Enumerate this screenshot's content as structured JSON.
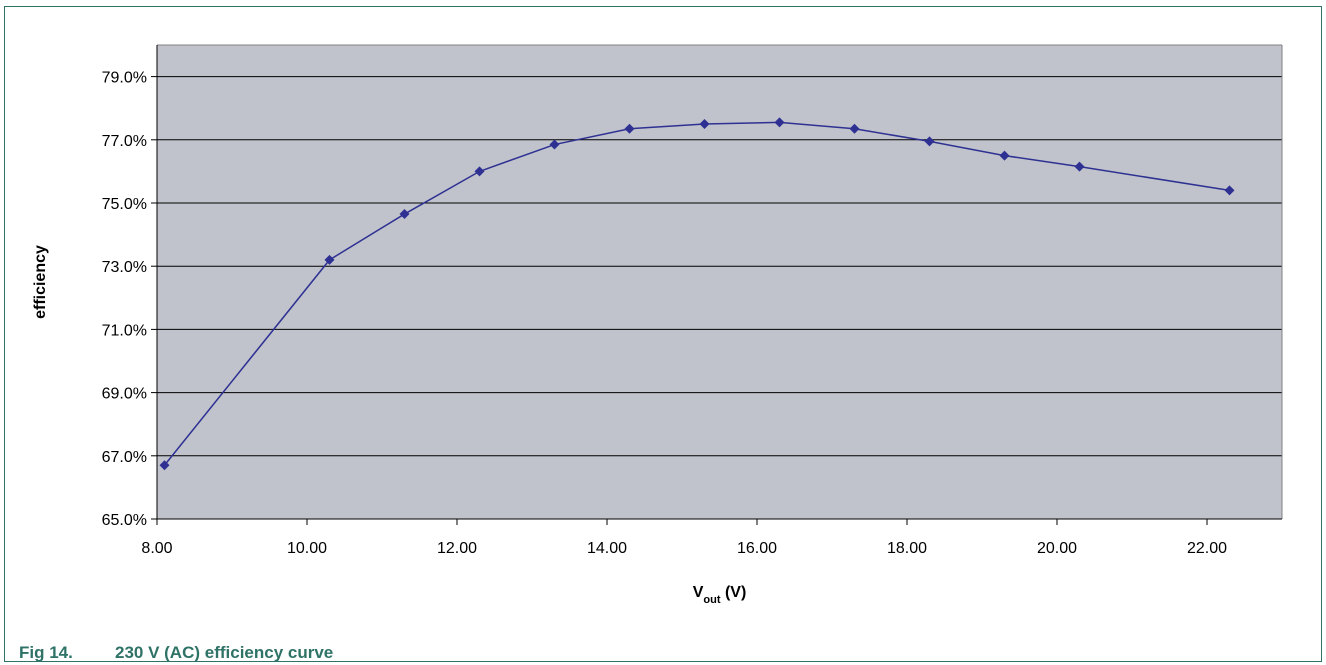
{
  "caption": {
    "number": "Fig 14.",
    "text": "230 V (AC) efficiency curve"
  },
  "colors": {
    "plot_background": "#c0c3cc",
    "gridline": "#000000",
    "series": "#2e3192",
    "caption": "#2f7266"
  },
  "chart_data": {
    "type": "scatter",
    "connected": true,
    "marker": "diamond",
    "title": "",
    "xlabel": "V",
    "xlabel_sub": "out",
    "xlabel_suffix": " (V)",
    "ylabel": "efficiency",
    "xlim": [
      8.0,
      23.0
    ],
    "ylim": [
      0.65,
      0.8
    ],
    "x_ticks": [
      8,
      10,
      12,
      14,
      16,
      18,
      20,
      22
    ],
    "x_tick_labels": [
      "8.00",
      "10.00",
      "12.00",
      "14.00",
      "16.00",
      "18.00",
      "20.00",
      "22.00"
    ],
    "y_ticks": [
      0.65,
      0.67,
      0.69,
      0.71,
      0.73,
      0.75,
      0.77,
      0.79
    ],
    "y_tick_labels": [
      "65.0%",
      "67.0%",
      "69.0%",
      "71.0%",
      "73.0%",
      "75.0%",
      "77.0%",
      "79.0%"
    ],
    "grid": {
      "horizontal": true,
      "vertical": false
    },
    "legend": "none",
    "series": [
      {
        "x": [
          8.1,
          10.3,
          11.3,
          12.3,
          13.3,
          14.3,
          15.3,
          16.3,
          17.3,
          18.3,
          19.3,
          20.3,
          22.3
        ],
        "y": [
          0.667,
          0.732,
          0.7465,
          0.76,
          0.7685,
          0.7735,
          0.775,
          0.7755,
          0.7735,
          0.7695,
          0.765,
          0.7615,
          0.754
        ]
      }
    ]
  }
}
